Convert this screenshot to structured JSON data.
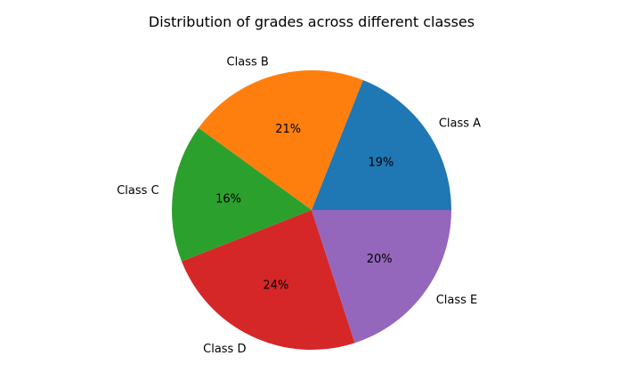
{
  "chart_data": {
    "type": "pie",
    "title": "Distribution of grades across different classes",
    "start_angle_deg": 0,
    "direction": "counterclockwise",
    "slices": [
      {
        "label": "Class A",
        "value": 19,
        "pct_label": "19%",
        "color": "#1f77b4"
      },
      {
        "label": "Class B",
        "value": 21,
        "pct_label": "21%",
        "color": "#ff7f0e"
      },
      {
        "label": "Class C",
        "value": 16,
        "pct_label": "16%",
        "color": "#2ca02c"
      },
      {
        "label": "Class D",
        "value": 24,
        "pct_label": "24%",
        "color": "#d62728"
      },
      {
        "label": "Class E",
        "value": 20,
        "pct_label": "20%",
        "color": "#9467bd"
      }
    ]
  }
}
